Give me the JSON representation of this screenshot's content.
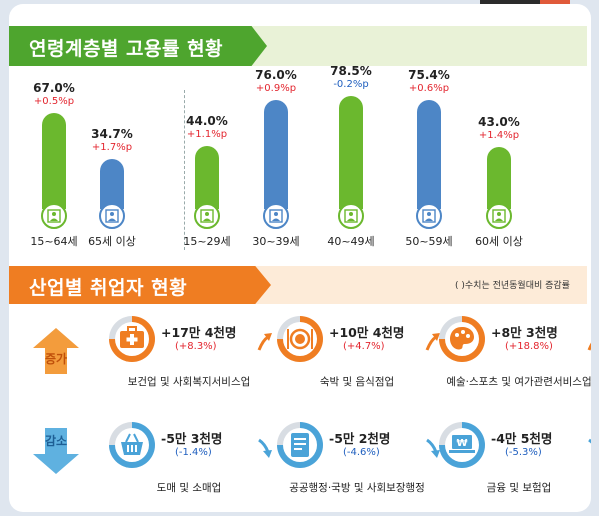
{
  "section1": {
    "title": "연령계층별 고용률 현황"
  },
  "section2": {
    "title": "산업별 취업자 현황",
    "note": "( )수치는 전년동월대비 증감률"
  },
  "chart_data": {
    "type": "bar",
    "categories": [
      "15~64세",
      "65세 이상",
      "15~29세",
      "30~39세",
      "40~49세",
      "50~59세",
      "60세 이상"
    ],
    "values": [
      67.0,
      34.7,
      44.0,
      76.0,
      78.5,
      75.4,
      43.0
    ],
    "value_labels": [
      "67.0%",
      "34.7%",
      "44.0%",
      "76.0%",
      "78.5%",
      "75.4%",
      "43.0%"
    ],
    "change_labels": [
      "+0.5%p",
      "+1.7%p",
      "+1.1%p",
      "+0.9%p",
      "-0.2%p",
      "+0.6%p",
      "+1.4%p"
    ],
    "colors": [
      "#6bb82e",
      "#4d86c6",
      "#6bb82e",
      "#4d86c6",
      "#6bb82e",
      "#4d86c6",
      "#6bb82e"
    ],
    "ylim": [
      0,
      100
    ]
  },
  "industry": {
    "increase_label": "증가",
    "decrease_label": "감소",
    "increase": [
      {
        "name": "보건업 및 사회복지서비스업",
        "value": "+17만 4천명",
        "pct": "(+8.3%)",
        "icon": "medical-kit-icon"
      },
      {
        "name": "숙박 및 음식점업",
        "value": "+10만 4천명",
        "pct": "(+4.7%)",
        "icon": "plate-cutlery-icon"
      },
      {
        "name": "예술·스포츠 및 여가관련서비스업",
        "value": "+8만 3천명",
        "pct": "(+18.8%)",
        "icon": "palette-icon"
      }
    ],
    "decrease": [
      {
        "name": "도매 및 소매업",
        "value": "-5만 3천명",
        "pct": "(-1.4%)",
        "icon": "shopping-basket-icon"
      },
      {
        "name": "공공행정·국방 및 사회보장행정",
        "value": "-5만 2천명",
        "pct": "(-4.6%)",
        "icon": "document-scroll-icon"
      },
      {
        "name": "금융 및 보험업",
        "value": "-4만 5천명",
        "pct": "(-5.3%)",
        "icon": "won-laptop-icon"
      }
    ],
    "colors": {
      "increase": "#ef7d22",
      "decrease": "#4aa3d8"
    }
  }
}
